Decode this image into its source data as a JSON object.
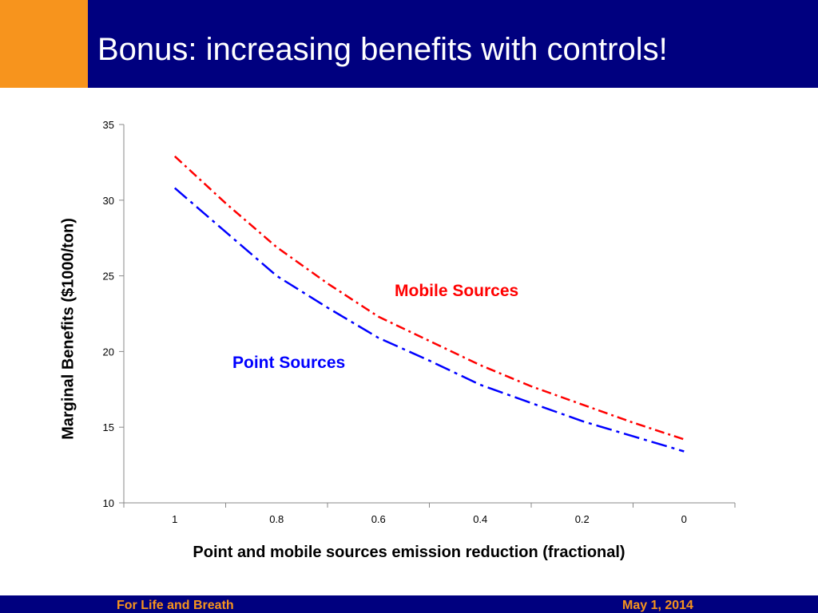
{
  "slide": {
    "title": "Bonus: increasing benefits with controls!",
    "footer_left": "For Life and Breath",
    "footer_right": "May 1, 2014"
  },
  "colors": {
    "title_bar": "#00007f",
    "accent": "#f7941d",
    "point_series": "#0000ff",
    "mobile_series": "#ff0000"
  },
  "chart_data": {
    "type": "line",
    "title": "",
    "xlabel": "Point and mobile sources emission reduction (fractional)",
    "ylabel": "Marginal Benefits ($1000/ton)",
    "x_ticks": [
      "1",
      "0.8",
      "0.6",
      "0.4",
      "0.2",
      "0"
    ],
    "y_ticks": [
      "10",
      "15",
      "20",
      "25",
      "30",
      "35"
    ],
    "ylim": [
      10,
      35
    ],
    "grid": false,
    "x": [
      1,
      0.9,
      0.8,
      0.7,
      0.6,
      0.5,
      0.4,
      0.3,
      0.2,
      0.1,
      0
    ],
    "series": [
      {
        "name": "Mobile Sources",
        "color": "#ff0000",
        "values": [
          32.9,
          29.8,
          26.9,
          24.5,
          22.3,
          20.7,
          19.1,
          17.7,
          16.5,
          15.3,
          14.2
        ]
      },
      {
        "name": "Point Sources",
        "color": "#0000ff",
        "values": [
          30.8,
          27.9,
          25.0,
          22.9,
          20.9,
          19.4,
          17.8,
          16.6,
          15.4,
          14.4,
          13.4
        ]
      }
    ]
  }
}
